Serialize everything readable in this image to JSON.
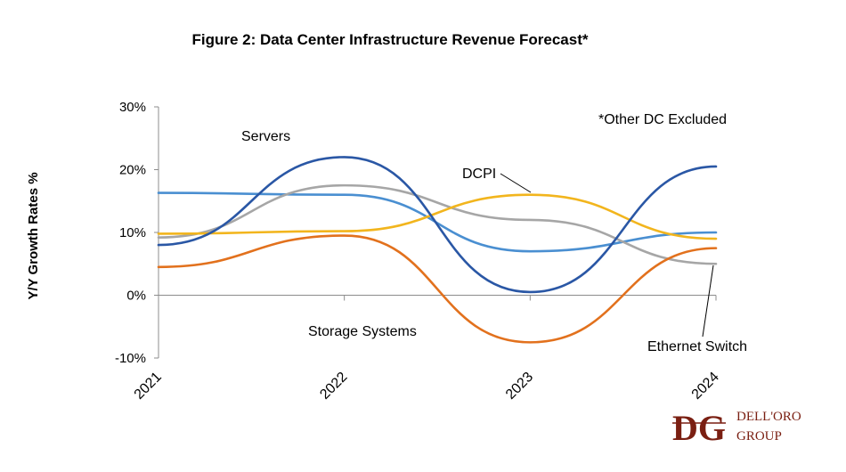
{
  "chart_data": {
    "type": "line",
    "title": "Figure 2: Data Center Infrastructure Revenue Forecast*",
    "ylabel": "Y/Y Growth Rates %",
    "xlabel": "",
    "categories": [
      "2021",
      "2022",
      "2023",
      "2024"
    ],
    "ylim": [
      -10,
      30
    ],
    "yticks": [
      {
        "value": 30,
        "label": "30%"
      },
      {
        "value": 20,
        "label": "20%"
      },
      {
        "value": 10,
        "label": "10%"
      },
      {
        "value": 0,
        "label": "0%"
      },
      {
        "value": -10,
        "label": "-10%"
      }
    ],
    "grid": false,
    "note": "*Other DC Excluded",
    "series": [
      {
        "name": "Servers",
        "color": "#2a57a5",
        "values": [
          8,
          22,
          0.5,
          20.5
        ]
      },
      {
        "name": "DCPI",
        "color": "#f2b51d",
        "values": [
          9.8,
          10.2,
          16,
          9
        ]
      },
      {
        "name": "Storage Systems",
        "color": "#e2711d",
        "values": [
          4.5,
          9.5,
          -7.5,
          7.5
        ]
      },
      {
        "name": "Ethernet Switch",
        "color": "#a6a6a6",
        "values": [
          9.2,
          17.5,
          12,
          5
        ]
      },
      {
        "name": "",
        "color": "#4a8fd1",
        "values": [
          16.3,
          16,
          7,
          10
        ]
      }
    ],
    "labels": [
      {
        "series": 0,
        "text": "Servers"
      },
      {
        "series": 1,
        "text": "DCPI"
      },
      {
        "series": 2,
        "text": "Storage Systems"
      },
      {
        "series": 3,
        "text": "Ethernet Switch"
      }
    ]
  },
  "logo": {
    "monogram": "DG",
    "line1": "DELL'ORO",
    "line2": "GROUP",
    "color": "#7a1f12"
  }
}
